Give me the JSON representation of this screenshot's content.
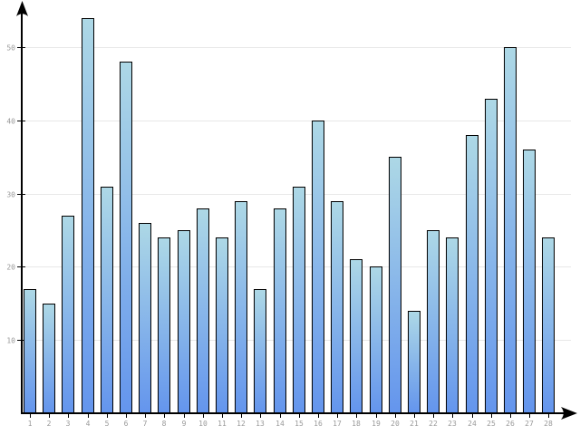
{
  "chart_data": {
    "type": "bar",
    "categories": [
      "1",
      "2",
      "3",
      "4",
      "5",
      "6",
      "7",
      "8",
      "9",
      "10",
      "11",
      "12",
      "13",
      "14",
      "15",
      "16",
      "17",
      "18",
      "19",
      "20",
      "21",
      "22",
      "23",
      "24",
      "25",
      "26",
      "27",
      "28"
    ],
    "values": [
      17,
      15,
      27,
      54,
      31,
      48,
      26,
      24,
      25,
      28,
      24,
      29,
      17,
      28,
      31,
      40,
      29,
      21,
      20,
      35,
      14,
      25,
      24,
      38,
      43,
      50,
      36,
      24
    ],
    "title": "",
    "xlabel": "",
    "ylabel": "",
    "ylim": [
      0,
      55
    ],
    "yticks": [
      10,
      20,
      30,
      40,
      50
    ],
    "grid": true,
    "legend": "none",
    "colors": {
      "background": "#ffffff",
      "bar_gradient_top": "#add8e6",
      "bar_gradient_bottom": "#6495ed",
      "bar_border": "#000000",
      "axis": "#000000",
      "gridline": "#e8e8e8",
      "tick_label": "#999999"
    }
  }
}
